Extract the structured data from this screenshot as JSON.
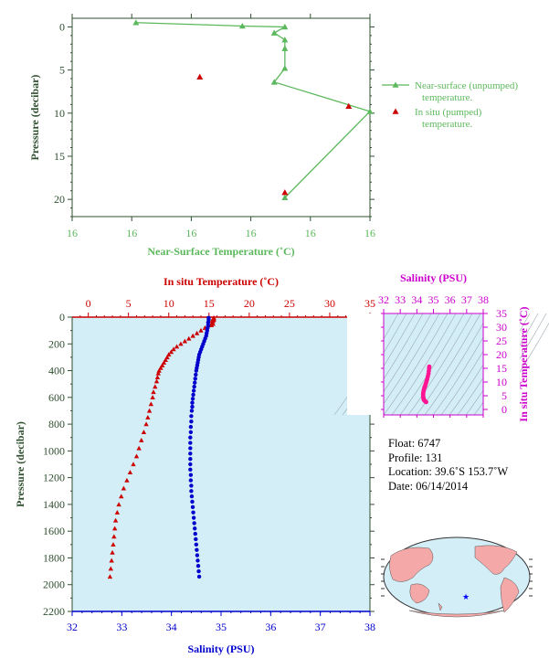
{
  "chart_data": [
    {
      "type": "line",
      "id": "near-surface",
      "xlabel": "Near-Surface Temperature (˚C)",
      "ylabel": "Pressure (decibar)",
      "x_tick_labels": [
        "16",
        "16",
        "16",
        "16",
        "16",
        "16"
      ],
      "y_ticks": [
        0,
        5,
        10,
        15,
        20
      ],
      "ylim": [
        22,
        -1
      ],
      "xlim": [
        15.8,
        16.08
      ],
      "series": [
        {
          "name": "Near-surface (unpumped) temperature.",
          "color": "#5cb85c",
          "marker": "triangle",
          "points": [
            [
              15.86,
              -0.5
            ],
            [
              15.96,
              -0.1
            ],
            [
              16.0,
              0.0
            ],
            [
              15.99,
              0.7
            ],
            [
              16.0,
              1.5
            ],
            [
              16.0,
              2.5
            ],
            [
              16.0,
              4.8
            ],
            [
              15.99,
              6.4
            ],
            [
              16.08,
              9.8
            ],
            [
              16.0,
              19.8
            ]
          ]
        },
        {
          "name": "In situ (pumped) temperature.",
          "color": "#cc0000",
          "marker": "triangle",
          "points": [
            [
              15.92,
              5.8
            ],
            [
              16.06,
              9.2
            ],
            [
              16.0,
              19.2
            ]
          ]
        }
      ],
      "legend_position": "right"
    },
    {
      "type": "scatter",
      "id": "profile",
      "title": "In situ Temperature (˚C)",
      "xlabel": "Salinity (PSU)",
      "ylabel": "Pressure (decibar)",
      "top_axis": {
        "label": "In situ Temperature (˚C)",
        "range": [
          -2,
          35
        ],
        "ticks": [
          0,
          5,
          10,
          15,
          20,
          25,
          30,
          35
        ]
      },
      "bottom_axis": {
        "label": "Salinity (PSU)",
        "range": [
          32,
          38
        ],
        "ticks": [
          32,
          33,
          34,
          35,
          36,
          37,
          38
        ]
      },
      "y_axis": {
        "range": [
          0,
          2200
        ],
        "ticks": [
          0,
          200,
          400,
          600,
          800,
          1000,
          1200,
          1400,
          1600,
          1800,
          2000,
          2200
        ]
      },
      "series": [
        {
          "name": "Temperature",
          "color": "#cc0000",
          "marker": "triangle",
          "points": [
            [
              15.6,
              5
            ],
            [
              15.6,
              10
            ],
            [
              15.5,
              15
            ],
            [
              15.6,
              20
            ],
            [
              15.4,
              25
            ],
            [
              15.5,
              30
            ],
            [
              15.4,
              40
            ],
            [
              15.5,
              50
            ],
            [
              15.3,
              60
            ],
            [
              14.5,
              80
            ],
            [
              14.0,
              100
            ],
            [
              13.5,
              120
            ],
            [
              13.0,
              140
            ],
            [
              12.5,
              160
            ],
            [
              12.0,
              180
            ],
            [
              11.5,
              200
            ],
            [
              11.0,
              220
            ],
            [
              10.6,
              240
            ],
            [
              10.3,
              260
            ],
            [
              10.0,
              280
            ],
            [
              9.8,
              300
            ],
            [
              9.6,
              320
            ],
            [
              9.4,
              340
            ],
            [
              9.2,
              360
            ],
            [
              9.0,
              380
            ],
            [
              8.8,
              400
            ],
            [
              8.7,
              420
            ],
            [
              8.6,
              450
            ],
            [
              8.5,
              480
            ],
            [
              8.3,
              520
            ],
            [
              8.1,
              560
            ],
            [
              8.0,
              600
            ],
            [
              7.8,
              650
            ],
            [
              7.6,
              700
            ],
            [
              7.4,
              750
            ],
            [
              7.2,
              800
            ],
            [
              6.9,
              860
            ],
            [
              6.6,
              920
            ],
            [
              6.3,
              980
            ],
            [
              6.0,
              1040
            ],
            [
              5.6,
              1100
            ],
            [
              5.2,
              1160
            ],
            [
              4.8,
              1220
            ],
            [
              4.4,
              1280
            ],
            [
              4.1,
              1340
            ],
            [
              3.8,
              1400
            ],
            [
              3.6,
              1460
            ],
            [
              3.4,
              1520
            ],
            [
              3.3,
              1580
            ],
            [
              3.2,
              1640
            ],
            [
              3.1,
              1700
            ],
            [
              3.0,
              1760
            ],
            [
              2.9,
              1820
            ],
            [
              2.8,
              1880
            ],
            [
              2.7,
              1940
            ]
          ]
        },
        {
          "name": "Salinity",
          "color": "#0000cc",
          "marker": "dot",
          "points": [
            [
              34.75,
              5
            ],
            [
              34.75,
              20
            ],
            [
              34.74,
              40
            ],
            [
              34.74,
              60
            ],
            [
              34.73,
              80
            ],
            [
              34.72,
              100
            ],
            [
              34.71,
              120
            ],
            [
              34.7,
              140
            ],
            [
              34.68,
              160
            ],
            [
              34.66,
              180
            ],
            [
              34.64,
              200
            ],
            [
              34.62,
              220
            ],
            [
              34.6,
              240
            ],
            [
              34.58,
              260
            ],
            [
              34.56,
              280
            ],
            [
              34.55,
              300
            ],
            [
              34.54,
              320
            ],
            [
              34.53,
              340
            ],
            [
              34.52,
              360
            ],
            [
              34.51,
              380
            ],
            [
              34.5,
              400
            ],
            [
              34.49,
              430
            ],
            [
              34.48,
              460
            ],
            [
              34.47,
              490
            ],
            [
              34.46,
              520
            ],
            [
              34.45,
              550
            ],
            [
              34.44,
              580
            ],
            [
              34.43,
              610
            ],
            [
              34.42,
              640
            ],
            [
              34.42,
              670
            ],
            [
              34.41,
              700
            ],
            [
              34.4,
              740
            ],
            [
              34.4,
              780
            ],
            [
              34.39,
              820
            ],
            [
              34.39,
              860
            ],
            [
              34.38,
              900
            ],
            [
              34.38,
              940
            ],
            [
              34.38,
              980
            ],
            [
              34.38,
              1020
            ],
            [
              34.38,
              1060
            ],
            [
              34.38,
              1100
            ],
            [
              34.38,
              1140
            ],
            [
              34.39,
              1180
            ],
            [
              34.39,
              1220
            ],
            [
              34.4,
              1260
            ],
            [
              34.4,
              1300
            ],
            [
              34.41,
              1340
            ],
            [
              34.42,
              1380
            ],
            [
              34.43,
              1420
            ],
            [
              34.44,
              1460
            ],
            [
              34.45,
              1500
            ],
            [
              34.46,
              1540
            ],
            [
              34.47,
              1580
            ],
            [
              34.48,
              1620
            ],
            [
              34.49,
              1660
            ],
            [
              34.5,
              1700
            ],
            [
              34.51,
              1740
            ],
            [
              34.52,
              1780
            ],
            [
              34.53,
              1820
            ],
            [
              34.54,
              1860
            ],
            [
              34.55,
              1900
            ],
            [
              34.56,
              1940
            ]
          ]
        }
      ]
    },
    {
      "type": "scatter",
      "id": "ts-diagram",
      "xlabel": "Salinity (PSU)",
      "ylabel": "In situ Temperature (˚C)",
      "x_ticks": [
        32,
        33,
        34,
        35,
        36,
        37,
        38
      ],
      "y_ticks": [
        0,
        5,
        10,
        15,
        20,
        25,
        30,
        35
      ],
      "xlim": [
        32,
        38
      ],
      "ylim": [
        -2,
        35
      ],
      "series": [
        {
          "name": "T-S",
          "color": "#ff1493",
          "points": [
            [
              34.75,
              15.6
            ],
            [
              34.74,
              15.0
            ],
            [
              34.72,
              14.0
            ],
            [
              34.7,
              13.0
            ],
            [
              34.66,
              12.0
            ],
            [
              34.62,
              11.0
            ],
            [
              34.58,
              10.2
            ],
            [
              34.55,
              9.6
            ],
            [
              34.52,
              9.0
            ],
            [
              34.5,
              8.6
            ],
            [
              34.47,
              8.2
            ],
            [
              34.45,
              7.8
            ],
            [
              34.43,
              7.3
            ],
            [
              34.41,
              6.8
            ],
            [
              34.39,
              6.2
            ],
            [
              34.38,
              5.6
            ],
            [
              34.38,
              5.0
            ],
            [
              34.39,
              4.4
            ],
            [
              34.4,
              4.0
            ],
            [
              34.42,
              3.6
            ],
            [
              34.45,
              3.3
            ],
            [
              34.48,
              3.1
            ],
            [
              34.52,
              2.9
            ],
            [
              34.56,
              2.7
            ]
          ]
        }
      ]
    }
  ],
  "info": {
    "float": "Float: 6747",
    "profile": "Profile: 131",
    "location": "Location: 39.6˚S 153.7˚W",
    "date": "Date: 06/14/2014"
  },
  "colors": {
    "green": "#5cb85c",
    "red": "#cc0000",
    "blue": "#0000cc",
    "magenta": "#cc00cc",
    "pink": "#ff1493",
    "axis_text": "#2f4f2f",
    "plot_bg": "#d4eef8",
    "land": "#f4a8a8",
    "ocean": "#d4eef8"
  },
  "map": {
    "marker": "★"
  }
}
